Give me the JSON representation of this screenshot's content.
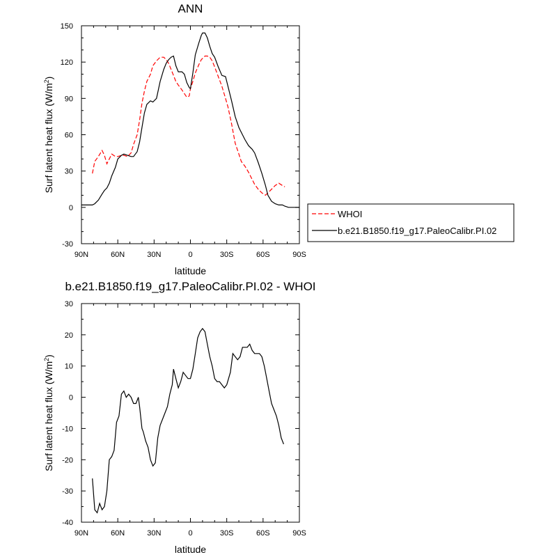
{
  "chart_data": [
    {
      "type": "line",
      "title": "ANN",
      "xlabel": "latitude",
      "ylabel": "Surf latent heat flux (W/m",
      "ylabel_sup": "2",
      "ylabel_end": ")",
      "xlim": [
        90,
        -90
      ],
      "ylim": [
        -30,
        150
      ],
      "x_ticks": [
        90,
        60,
        30,
        0,
        -30,
        -60,
        -90
      ],
      "x_tick_labels": [
        "90N",
        "60N",
        "30N",
        "0",
        "30S",
        "60S",
        "90S"
      ],
      "y_ticks": [
        -30,
        0,
        30,
        60,
        90,
        120,
        150
      ],
      "y_tick_labels": [
        "-30",
        "0",
        "30",
        "60",
        "90",
        "120",
        "150"
      ],
      "legend_position": "outside-right",
      "series": [
        {
          "name": "WHOI",
          "color": "#ff0000",
          "dash": "dashed",
          "x": [
            81,
            79,
            76,
            73,
            71,
            69,
            67,
            65,
            62,
            60,
            57,
            55,
            52,
            49,
            47,
            44,
            42,
            40,
            38,
            36,
            33,
            31,
            28,
            25,
            22,
            20,
            18,
            16,
            14,
            12,
            10,
            7,
            5,
            3,
            1,
            0,
            -2,
            -4,
            -7,
            -9,
            -12,
            -14,
            -16,
            -18,
            -20,
            -23,
            -26,
            -29,
            -31,
            -34,
            -37,
            -40,
            -42,
            -45,
            -48,
            -51,
            -53,
            -56,
            -59,
            -62,
            -64,
            -67,
            -70,
            -73,
            -76,
            -78
          ],
          "y": [
            28,
            38,
            42,
            47,
            43,
            36,
            40,
            44,
            42,
            42,
            43,
            43,
            42,
            45,
            52,
            60,
            72,
            86,
            96,
            104,
            110,
            117,
            121,
            124,
            124,
            122,
            119,
            114,
            109,
            104,
            101,
            97,
            94,
            91,
            92,
            98,
            104,
            111,
            118,
            122,
            125,
            125,
            124,
            121,
            116,
            108,
            100,
            90,
            83,
            69,
            53,
            44,
            38,
            34,
            29,
            23,
            19,
            15,
            12,
            10,
            12,
            15,
            18,
            20,
            18,
            17
          ]
        },
        {
          "name": "b.e21.B1850.f19_g17.PaleoCalibr.PI.02",
          "color": "#000000",
          "dash": "solid",
          "x": [
            90,
            87,
            84,
            81,
            79,
            76,
            73,
            71,
            69,
            67,
            65,
            62,
            60,
            57,
            55,
            52,
            49,
            47,
            44,
            42,
            40,
            38,
            36,
            33,
            31,
            28,
            25,
            22,
            20,
            18,
            16,
            14,
            12,
            10,
            7,
            5,
            3,
            1,
            0,
            -2,
            -4,
            -7,
            -9,
            -10,
            -12,
            -14,
            -16,
            -18,
            -20,
            -23,
            -26,
            -29,
            -31,
            -34,
            -37,
            -40,
            -42,
            -45,
            -48,
            -51,
            -53,
            -56,
            -59,
            -62,
            -64,
            -67,
            -70,
            -73,
            -76,
            -78,
            -81,
            -84,
            -87,
            -90
          ],
          "y": [
            2,
            2,
            2,
            2,
            3,
            6,
            11,
            14,
            16,
            20,
            26,
            33,
            40,
            43,
            44,
            43,
            42,
            42,
            46,
            54,
            66,
            78,
            85,
            88,
            87,
            90,
            104,
            114,
            119,
            122,
            124,
            125,
            117,
            112,
            112,
            110,
            103,
            99,
            98,
            111,
            126,
            136,
            142,
            144,
            144,
            140,
            133,
            127,
            124,
            116,
            109,
            108,
            100,
            88,
            75,
            66,
            62,
            56,
            51,
            48,
            45,
            37,
            28,
            18,
            10,
            5,
            3,
            2,
            2,
            1,
            0,
            0,
            0,
            0
          ]
        }
      ]
    },
    {
      "type": "line",
      "title": "b.e21.B1850.f19_g17.PaleoCalibr.PI.02 - WHOI",
      "xlabel": "latitude",
      "ylabel": "Surf latent heat flux (W/m",
      "ylabel_sup": "2",
      "ylabel_end": ")",
      "xlim": [
        90,
        -90
      ],
      "ylim": [
        -40,
        30
      ],
      "x_ticks": [
        90,
        60,
        30,
        0,
        -30,
        -60,
        -90
      ],
      "x_tick_labels": [
        "90N",
        "60N",
        "30N",
        "0",
        "30S",
        "60S",
        "90S"
      ],
      "y_ticks": [
        -40,
        -30,
        -20,
        -10,
        0,
        10,
        20,
        30
      ],
      "y_tick_labels": [
        "-40",
        "-30",
        "-20",
        "-10",
        "0",
        "10",
        "20",
        "30"
      ],
      "series": [
        {
          "name": "",
          "color": "#000000",
          "dash": "solid",
          "x": [
            81,
            79,
            77,
            75,
            73,
            71,
            69,
            67,
            65,
            63,
            61,
            59,
            57,
            55,
            53,
            51,
            49,
            47,
            45,
            43,
            42,
            40,
            39,
            37,
            35,
            33,
            31,
            29,
            27,
            25,
            23,
            21,
            19,
            17,
            15,
            14,
            12,
            10,
            8,
            6,
            4,
            2,
            0,
            -2,
            -4,
            -6,
            -8,
            -10,
            -12,
            -14,
            -16,
            -18,
            -20,
            -22,
            -24,
            -26,
            -28,
            -30,
            -33,
            -35,
            -37,
            -39,
            -41,
            -43,
            -45,
            -47,
            -49,
            -51,
            -53,
            -55,
            -57,
            -59,
            -61,
            -63,
            -65,
            -67,
            -69,
            -71,
            -73,
            -75,
            -77
          ],
          "y": [
            -26,
            -36,
            -37,
            -34,
            -36,
            -35,
            -30,
            -20,
            -19,
            -17,
            -8,
            -6,
            1,
            2,
            0,
            1,
            0,
            -2,
            -2,
            0,
            -3,
            -10,
            -11,
            -14,
            -16,
            -20,
            -22,
            -21,
            -13,
            -9,
            -7,
            -5,
            -3,
            1,
            4,
            9,
            6,
            3,
            5,
            8,
            7,
            6,
            6,
            9,
            14,
            19,
            21,
            22,
            21,
            17,
            13,
            10,
            6,
            5,
            5,
            4,
            3,
            4,
            8,
            14,
            13,
            12,
            13,
            16,
            16,
            16,
            17,
            15,
            14,
            14,
            14,
            13,
            10,
            6,
            2,
            -2,
            -4,
            -6,
            -9,
            -13,
            -15
          ]
        }
      ]
    }
  ]
}
